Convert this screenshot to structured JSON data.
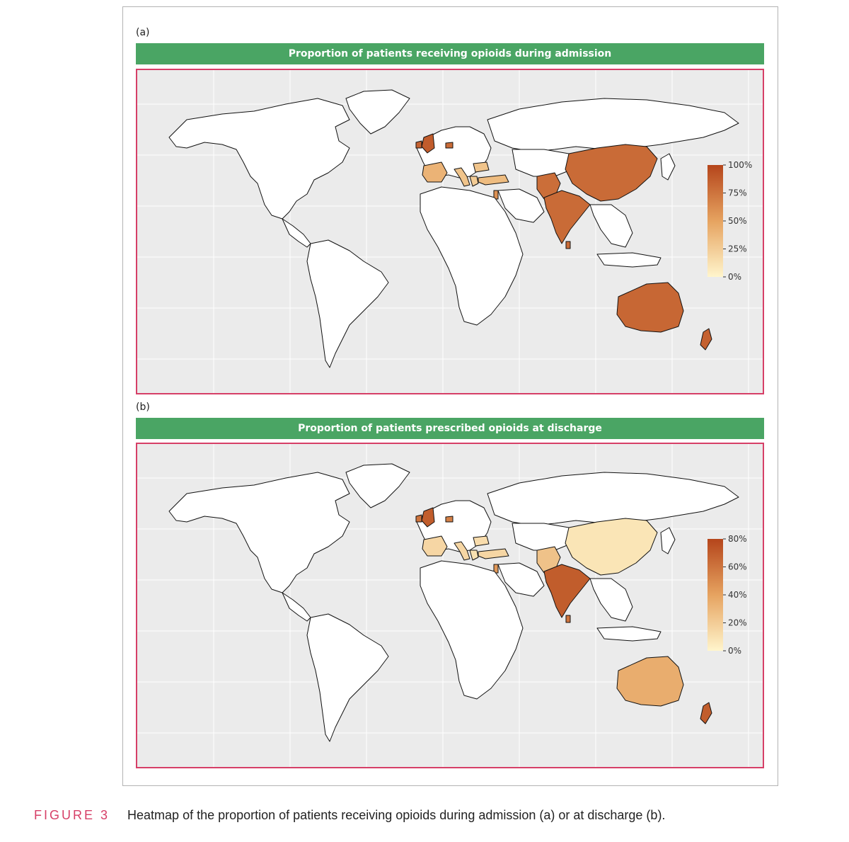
{
  "figure": {
    "caption_label": "FIGURE 3",
    "caption_text": "Heatmap of the proportion of patients receiving opioids during admission (a) or at discharge (b)."
  },
  "panels": [
    {
      "label": "(a)",
      "title": "Proportion of patients receiving opioids during admission",
      "legend_ticks": [
        "100%",
        "75%",
        "50%",
        "25%",
        "0%"
      ],
      "scale_max": 100
    },
    {
      "label": "(b)",
      "title": "Proportion of patients prescribed opioids at discharge",
      "legend_ticks": [
        "80%",
        "60%",
        "40%",
        "20%",
        "0%"
      ],
      "scale_max": 80
    }
  ],
  "colors": {
    "scale_low": "#fff5cc",
    "scale_mid": "#e6a360",
    "scale_high": "#b5451b",
    "banner": "#4aa564",
    "frame": "#d63f67",
    "background": "#ebebeb",
    "land": "#ffffff"
  },
  "chart_data": [
    {
      "type": "heatmap",
      "title": "Proportion of patients receiving opioids during admission",
      "legend_range": [
        0,
        100
      ],
      "unit": "%",
      "regions": [
        {
          "name": "United Kingdom",
          "value": 88
        },
        {
          "name": "Ireland",
          "value": 85
        },
        {
          "name": "Netherlands",
          "value": 80
        },
        {
          "name": "Spain",
          "value": 40
        },
        {
          "name": "Italy",
          "value": 30
        },
        {
          "name": "Greece",
          "value": 25
        },
        {
          "name": "Romania",
          "value": 30
        },
        {
          "name": "Turkey",
          "value": 35
        },
        {
          "name": "Israel",
          "value": 60
        },
        {
          "name": "China",
          "value": 80
        },
        {
          "name": "Pakistan",
          "value": 78
        },
        {
          "name": "India",
          "value": 80
        },
        {
          "name": "Sri Lanka",
          "value": 80
        },
        {
          "name": "Australia",
          "value": 82
        },
        {
          "name": "New Zealand",
          "value": 85
        }
      ]
    },
    {
      "type": "heatmap",
      "title": "Proportion of patients prescribed opioids at discharge",
      "legend_range": [
        0,
        80
      ],
      "unit": "%",
      "regions": [
        {
          "name": "United Kingdom",
          "value": 70
        },
        {
          "name": "Ireland",
          "value": 60
        },
        {
          "name": "Netherlands",
          "value": 55
        },
        {
          "name": "Spain",
          "value": 15
        },
        {
          "name": "Italy",
          "value": 15
        },
        {
          "name": "Greece",
          "value": 10
        },
        {
          "name": "Romania",
          "value": 12
        },
        {
          "name": "Turkey",
          "value": 15
        },
        {
          "name": "Israel",
          "value": 45
        },
        {
          "name": "China",
          "value": 8
        },
        {
          "name": "Pakistan",
          "value": 25
        },
        {
          "name": "India",
          "value": 70
        },
        {
          "name": "Sri Lanka",
          "value": 60
        },
        {
          "name": "Australia",
          "value": 35
        },
        {
          "name": "New Zealand",
          "value": 70
        }
      ]
    }
  ]
}
